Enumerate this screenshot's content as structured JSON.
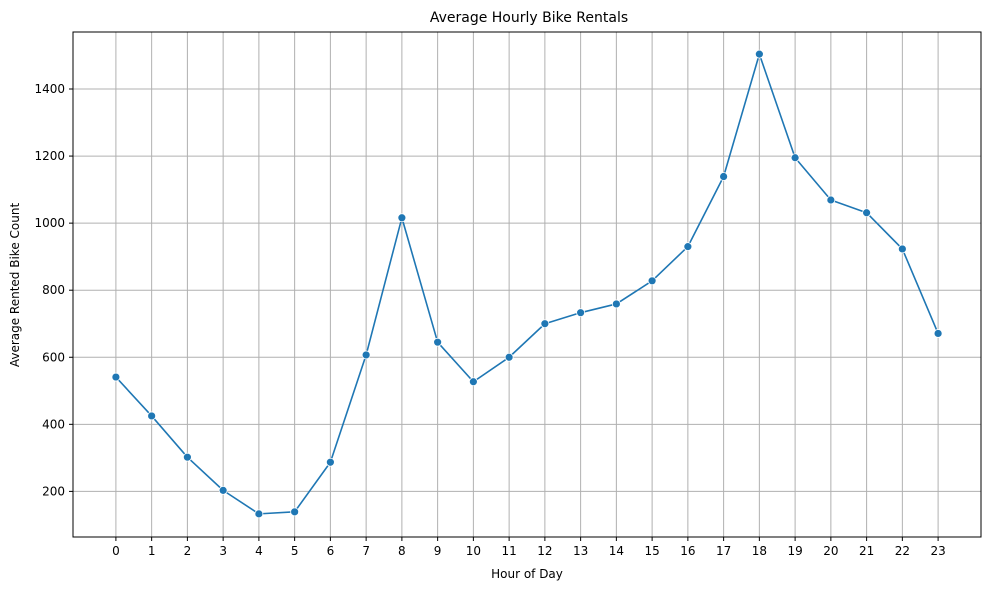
{
  "chart_data": {
    "type": "line",
    "title": "Average Hourly Bike Rentals",
    "xlabel": "Hour of Day",
    "ylabel": "Average Rented Bike Count",
    "x": [
      0,
      1,
      2,
      3,
      4,
      5,
      6,
      7,
      8,
      9,
      10,
      11,
      12,
      13,
      14,
      15,
      16,
      17,
      18,
      19,
      20,
      21,
      22,
      23
    ],
    "xticks": [
      "0",
      "1",
      "2",
      "3",
      "4",
      "5",
      "6",
      "7",
      "8",
      "9",
      "10",
      "11",
      "12",
      "13",
      "14",
      "15",
      "16",
      "17",
      "18",
      "19",
      "20",
      "21",
      "22",
      "23"
    ],
    "yticks": [
      "200",
      "400",
      "600",
      "800",
      "1000",
      "1200",
      "1400"
    ],
    "ytick_values": [
      200,
      400,
      600,
      800,
      1000,
      1200,
      1400
    ],
    "xlim": [
      -1.2,
      24.2
    ],
    "ylim": [
      64,
      1570
    ],
    "grid": true,
    "series": [
      {
        "values": [
          541,
          425,
          302,
          203,
          133,
          139,
          287,
          607,
          1016,
          645,
          527,
          600,
          700,
          733,
          759,
          828,
          930,
          1139,
          1504,
          1195,
          1069,
          1031,
          923,
          671
        ],
        "color": "#1f77b4",
        "marker": "circle"
      }
    ]
  }
}
